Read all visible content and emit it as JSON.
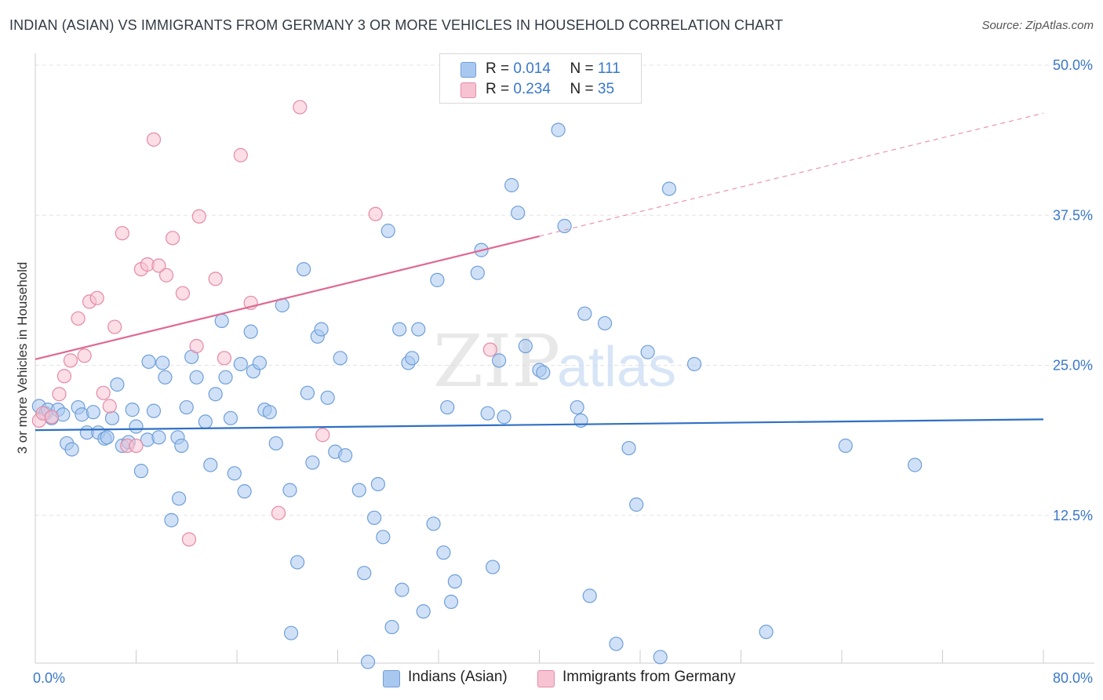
{
  "title": "INDIAN (ASIAN) VS IMMIGRANTS FROM GERMANY 3 OR MORE VEHICLES IN HOUSEHOLD CORRELATION CHART",
  "source": "Source: ZipAtlas.com",
  "watermark": {
    "zip": "ZIP",
    "atlas": "atlas"
  },
  "legend_top": [
    {
      "r_label": "R =",
      "r_value": "0.014",
      "n_label": "N =",
      "n_value": "111",
      "color": "#a9c8f0",
      "border": "#6f9fd8"
    },
    {
      "r_label": "R =",
      "r_value": "0.234",
      "n_label": "N =",
      "n_value": "35",
      "color": "#f7c3d2",
      "border": "#e58aa6"
    }
  ],
  "legend_bottom": [
    "Indians (Asian)",
    "Immigrants from Germany"
  ],
  "chart_data": {
    "type": "scatter",
    "title": "INDIAN (ASIAN) VS IMMIGRANTS FROM GERMANY 3 OR MORE VEHICLES IN HOUSEHOLD CORRELATION CHART",
    "xlabel": "",
    "ylabel": "3 or more Vehicles in Household",
    "xlim": [
      0,
      80
    ],
    "ylim": [
      0,
      50
    ],
    "x_tick_labels": [
      "0.0%",
      "80.0%"
    ],
    "y_ticks": [
      12.5,
      25.0,
      37.5,
      50.0
    ],
    "y_tick_labels": [
      "12.5%",
      "25.0%",
      "37.5%",
      "50.0%"
    ],
    "grid": true,
    "series": [
      {
        "name": "Indians (Asian)",
        "color": "#6f9fd8",
        "fill": "#a9c8f0",
        "line_color": "#2f6fc4",
        "trend": {
          "x0": 0,
          "y0": 19.6,
          "x1": 80,
          "y1": 20.5,
          "dash_from": null
        },
        "points": [
          [
            0.3,
            21.6
          ],
          [
            0.8,
            21.0
          ],
          [
            1.0,
            21.3
          ],
          [
            1.3,
            20.6
          ],
          [
            1.8,
            21.3
          ],
          [
            2.2,
            20.9
          ],
          [
            2.5,
            18.5
          ],
          [
            2.9,
            18.0
          ],
          [
            3.4,
            21.5
          ],
          [
            3.7,
            20.9
          ],
          [
            4.1,
            19.4
          ],
          [
            4.6,
            21.1
          ],
          [
            5.0,
            19.4
          ],
          [
            5.5,
            18.9
          ],
          [
            5.7,
            19.0
          ],
          [
            6.1,
            20.6
          ],
          [
            6.5,
            23.4
          ],
          [
            6.9,
            18.3
          ],
          [
            7.7,
            21.3
          ],
          [
            8.0,
            19.9
          ],
          [
            8.4,
            16.2
          ],
          [
            8.9,
            18.8
          ],
          [
            9.4,
            21.2
          ],
          [
            9.8,
            19.0
          ],
          [
            10.1,
            25.2
          ],
          [
            10.3,
            24.0
          ],
          [
            10.8,
            12.1
          ],
          [
            11.3,
            19.0
          ],
          [
            11.6,
            18.3
          ],
          [
            12.0,
            21.5
          ],
          [
            12.4,
            25.7
          ],
          [
            12.8,
            24.0
          ],
          [
            13.5,
            20.3
          ],
          [
            13.9,
            16.7
          ],
          [
            14.3,
            22.6
          ],
          [
            14.8,
            28.7
          ],
          [
            15.1,
            24.0
          ],
          [
            15.5,
            20.6
          ],
          [
            15.8,
            16.0
          ],
          [
            16.3,
            25.1
          ],
          [
            16.6,
            14.5
          ],
          [
            17.1,
            27.8
          ],
          [
            17.3,
            24.5
          ],
          [
            17.8,
            25.2
          ],
          [
            18.2,
            21.3
          ],
          [
            18.6,
            21.1
          ],
          [
            19.1,
            18.5
          ],
          [
            19.6,
            30.0
          ],
          [
            20.2,
            14.6
          ],
          [
            20.8,
            8.6
          ],
          [
            20.3,
            2.7
          ],
          [
            21.3,
            33.0
          ],
          [
            21.6,
            22.7
          ],
          [
            22.0,
            16.9
          ],
          [
            22.4,
            27.4
          ],
          [
            22.7,
            28.0
          ],
          [
            23.2,
            22.3
          ],
          [
            23.8,
            17.8
          ],
          [
            24.2,
            25.6
          ],
          [
            24.6,
            17.5
          ],
          [
            25.7,
            14.6
          ],
          [
            26.1,
            7.7
          ],
          [
            26.4,
            0.3
          ],
          [
            26.9,
            12.3
          ],
          [
            27.2,
            15.1
          ],
          [
            27.6,
            10.7
          ],
          [
            28.0,
            36.2
          ],
          [
            28.3,
            3.2
          ],
          [
            28.9,
            28.0
          ],
          [
            29.1,
            6.3
          ],
          [
            29.6,
            25.2
          ],
          [
            29.9,
            25.6
          ],
          [
            30.4,
            28.0
          ],
          [
            30.8,
            4.5
          ],
          [
            31.6,
            11.8
          ],
          [
            31.9,
            32.1
          ],
          [
            32.4,
            9.4
          ],
          [
            32.7,
            21.5
          ],
          [
            33.0,
            5.3
          ],
          [
            33.3,
            7.0
          ],
          [
            35.1,
            32.7
          ],
          [
            35.4,
            34.6
          ],
          [
            35.9,
            21.0
          ],
          [
            36.3,
            8.2
          ],
          [
            36.8,
            25.4
          ],
          [
            37.2,
            20.7
          ],
          [
            37.8,
            40.0
          ],
          [
            38.3,
            37.7
          ],
          [
            38.9,
            26.6
          ],
          [
            40.0,
            24.6
          ],
          [
            40.3,
            24.4
          ],
          [
            41.5,
            44.6
          ],
          [
            42.0,
            36.6
          ],
          [
            43.0,
            21.5
          ],
          [
            43.6,
            29.3
          ],
          [
            44.0,
            5.8
          ],
          [
            45.2,
            28.5
          ],
          [
            46.1,
            1.8
          ],
          [
            47.1,
            18.1
          ],
          [
            47.7,
            13.4
          ],
          [
            48.6,
            26.1
          ],
          [
            49.6,
            0.7
          ],
          [
            50.3,
            39.7
          ],
          [
            52.3,
            25.1
          ],
          [
            58.0,
            2.8
          ],
          [
            69.8,
            16.7
          ],
          [
            64.3,
            18.3
          ],
          [
            43.3,
            20.4
          ],
          [
            7.4,
            18.6
          ],
          [
            9.0,
            25.3
          ],
          [
            11.4,
            13.9
          ]
        ]
      },
      {
        "name": "Immigrants from Germany",
        "color": "#e58aa6",
        "fill": "#f7c3d2",
        "line_color": "#e06890",
        "trend": {
          "x0": 0,
          "y0": 25.5,
          "x1": 80,
          "y1": 46.0,
          "dash_from": 40
        },
        "points": [
          [
            0.3,
            20.4
          ],
          [
            0.6,
            21.0
          ],
          [
            1.3,
            20.7
          ],
          [
            1.9,
            22.6
          ],
          [
            2.3,
            24.1
          ],
          [
            2.8,
            25.4
          ],
          [
            3.4,
            28.9
          ],
          [
            3.9,
            25.8
          ],
          [
            4.3,
            30.3
          ],
          [
            4.9,
            30.6
          ],
          [
            5.4,
            22.7
          ],
          [
            5.9,
            21.6
          ],
          [
            6.3,
            28.2
          ],
          [
            6.9,
            36.0
          ],
          [
            7.3,
            18.3
          ],
          [
            8.0,
            18.3
          ],
          [
            8.4,
            33.0
          ],
          [
            8.9,
            33.4
          ],
          [
            9.4,
            43.8
          ],
          [
            9.8,
            33.3
          ],
          [
            10.4,
            32.5
          ],
          [
            10.9,
            35.6
          ],
          [
            11.7,
            31.0
          ],
          [
            12.2,
            10.5
          ],
          [
            12.8,
            26.6
          ],
          [
            13.0,
            37.4
          ],
          [
            14.3,
            32.2
          ],
          [
            15.0,
            25.6
          ],
          [
            16.3,
            42.5
          ],
          [
            17.1,
            30.2
          ],
          [
            19.3,
            12.7
          ],
          [
            21.0,
            46.5
          ],
          [
            22.8,
            19.2
          ],
          [
            27.0,
            37.6
          ],
          [
            36.1,
            26.3
          ]
        ]
      }
    ]
  }
}
